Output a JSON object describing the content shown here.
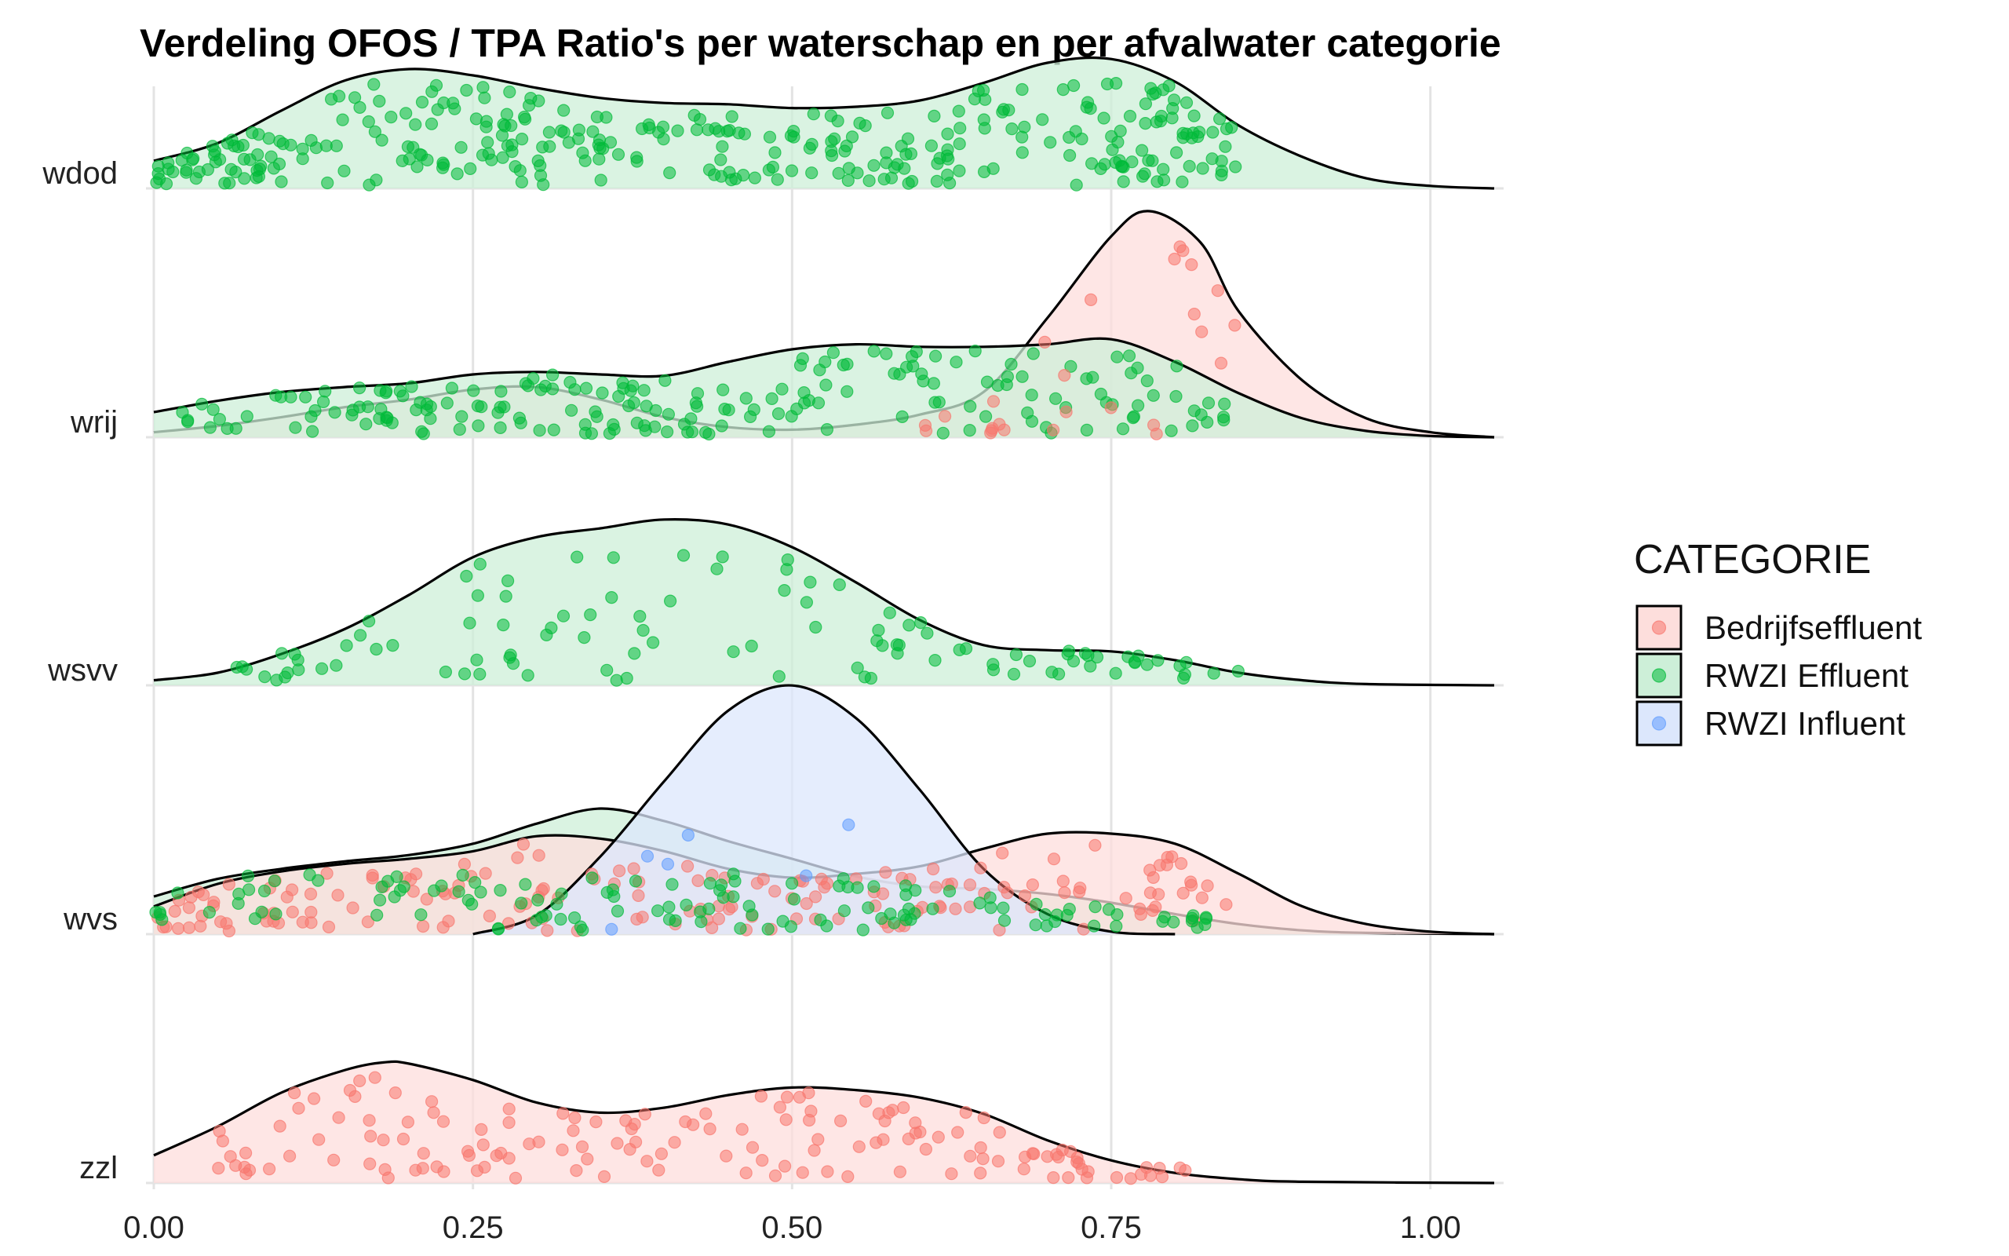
{
  "chart_data": {
    "type": "ridgeline",
    "title": "Verdeling OFOS / TPA Ratio's per waterschap en per afvalwater categorie",
    "xlabel": "",
    "ylabel": "",
    "xlim": [
      0,
      1.05
    ],
    "x_ticks": [
      "0.00",
      "0.25",
      "0.50",
      "0.75",
      "1.00"
    ],
    "x_tick_values": [
      0,
      0.25,
      0.5,
      0.75,
      1.0
    ],
    "groups": [
      "wdod",
      "wrij",
      "wsvv",
      "wvs",
      "zzl"
    ],
    "grid": true,
    "legend": {
      "title": "CATEGORIE",
      "position": "right",
      "entries": [
        {
          "name": "Bedrijfseffluent",
          "fill": "#FDDEDC",
          "point": "#F8766D"
        },
        {
          "name": "RWZI Effluent",
          "fill": "#CDEFD8",
          "point": "#00BA38"
        },
        {
          "name": "RWZI Influent",
          "fill": "#DCE7FC",
          "point": "#619CFF"
        }
      ]
    },
    "ridges": [
      {
        "group": "wdod",
        "category": "RWZI Effluent",
        "points": [
          [
            0,
            0.22
          ],
          [
            0.05,
            0.36
          ],
          [
            0.1,
            0.62
          ],
          [
            0.15,
            0.86
          ],
          [
            0.2,
            0.95
          ],
          [
            0.25,
            0.9
          ],
          [
            0.3,
            0.8
          ],
          [
            0.35,
            0.72
          ],
          [
            0.4,
            0.68
          ],
          [
            0.45,
            0.67
          ],
          [
            0.5,
            0.64
          ],
          [
            0.55,
            0.65
          ],
          [
            0.6,
            0.7
          ],
          [
            0.65,
            0.84
          ],
          [
            0.7,
            1.0
          ],
          [
            0.75,
            1.03
          ],
          [
            0.8,
            0.85
          ],
          [
            0.85,
            0.5
          ],
          [
            0.9,
            0.25
          ],
          [
            0.95,
            0.08
          ],
          [
            1.0,
            0.02
          ],
          [
            1.05,
            0
          ]
        ]
      },
      {
        "group": "wrij",
        "category": "Bedrijfseffluent",
        "points": [
          [
            0,
            0.04
          ],
          [
            0.05,
            0.09
          ],
          [
            0.1,
            0.16
          ],
          [
            0.15,
            0.24
          ],
          [
            0.2,
            0.3
          ],
          [
            0.25,
            0.38
          ],
          [
            0.3,
            0.4
          ],
          [
            0.35,
            0.3
          ],
          [
            0.4,
            0.16
          ],
          [
            0.45,
            0.08
          ],
          [
            0.5,
            0.06
          ],
          [
            0.55,
            0.1
          ],
          [
            0.6,
            0.18
          ],
          [
            0.65,
            0.36
          ],
          [
            0.7,
            0.95
          ],
          [
            0.75,
            1.6
          ],
          [
            0.78,
            1.8
          ],
          [
            0.82,
            1.55
          ],
          [
            0.85,
            1.0
          ],
          [
            0.9,
            0.45
          ],
          [
            0.95,
            0.15
          ],
          [
            1.0,
            0.04
          ],
          [
            1.05,
            0
          ]
        ]
      },
      {
        "group": "wrij",
        "category": "RWZI Effluent",
        "points": [
          [
            0,
            0.2
          ],
          [
            0.05,
            0.29
          ],
          [
            0.1,
            0.36
          ],
          [
            0.15,
            0.4
          ],
          [
            0.2,
            0.43
          ],
          [
            0.25,
            0.5
          ],
          [
            0.3,
            0.52
          ],
          [
            0.35,
            0.5
          ],
          [
            0.4,
            0.49
          ],
          [
            0.45,
            0.6
          ],
          [
            0.5,
            0.7
          ],
          [
            0.55,
            0.74
          ],
          [
            0.6,
            0.72
          ],
          [
            0.65,
            0.72
          ],
          [
            0.7,
            0.74
          ],
          [
            0.75,
            0.78
          ],
          [
            0.8,
            0.6
          ],
          [
            0.85,
            0.35
          ],
          [
            0.9,
            0.15
          ],
          [
            0.95,
            0.05
          ],
          [
            1.0,
            0.01
          ],
          [
            1.05,
            0
          ]
        ]
      },
      {
        "group": "wsvv",
        "category": "RWZI Effluent",
        "points": [
          [
            0,
            0.04
          ],
          [
            0.05,
            0.1
          ],
          [
            0.1,
            0.25
          ],
          [
            0.15,
            0.45
          ],
          [
            0.2,
            0.72
          ],
          [
            0.25,
            1.02
          ],
          [
            0.3,
            1.18
          ],
          [
            0.35,
            1.25
          ],
          [
            0.4,
            1.32
          ],
          [
            0.45,
            1.28
          ],
          [
            0.5,
            1.1
          ],
          [
            0.55,
            0.82
          ],
          [
            0.6,
            0.52
          ],
          [
            0.65,
            0.32
          ],
          [
            0.7,
            0.28
          ],
          [
            0.75,
            0.27
          ],
          [
            0.8,
            0.2
          ],
          [
            0.85,
            0.1
          ],
          [
            0.9,
            0.04
          ],
          [
            0.95,
            0.01
          ],
          [
            1.05,
            0
          ]
        ]
      },
      {
        "group": "wvs",
        "category": "RWZI Effluent",
        "points": [
          [
            0,
            0.3
          ],
          [
            0.05,
            0.44
          ],
          [
            0.1,
            0.52
          ],
          [
            0.15,
            0.58
          ],
          [
            0.2,
            0.63
          ],
          [
            0.25,
            0.72
          ],
          [
            0.3,
            0.88
          ],
          [
            0.35,
            1.0
          ],
          [
            0.4,
            0.9
          ],
          [
            0.45,
            0.74
          ],
          [
            0.5,
            0.6
          ],
          [
            0.55,
            0.46
          ],
          [
            0.6,
            0.38
          ],
          [
            0.65,
            0.36
          ],
          [
            0.7,
            0.32
          ],
          [
            0.75,
            0.25
          ],
          [
            0.8,
            0.16
          ],
          [
            0.85,
            0.08
          ],
          [
            0.9,
            0.03
          ],
          [
            0.95,
            0.01
          ],
          [
            1.05,
            0
          ]
        ]
      },
      {
        "group": "wvs",
        "category": "Bedrijfseffluent",
        "points": [
          [
            0,
            0.22
          ],
          [
            0.05,
            0.4
          ],
          [
            0.1,
            0.5
          ],
          [
            0.15,
            0.56
          ],
          [
            0.2,
            0.6
          ],
          [
            0.25,
            0.66
          ],
          [
            0.3,
            0.78
          ],
          [
            0.35,
            0.76
          ],
          [
            0.4,
            0.66
          ],
          [
            0.45,
            0.52
          ],
          [
            0.5,
            0.45
          ],
          [
            0.55,
            0.48
          ],
          [
            0.6,
            0.54
          ],
          [
            0.65,
            0.68
          ],
          [
            0.7,
            0.8
          ],
          [
            0.75,
            0.8
          ],
          [
            0.8,
            0.72
          ],
          [
            0.85,
            0.48
          ],
          [
            0.9,
            0.22
          ],
          [
            0.95,
            0.08
          ],
          [
            1.0,
            0.02
          ],
          [
            1.05,
            0
          ]
        ]
      },
      {
        "group": "wvs",
        "category": "RWZI Influent",
        "points": [
          [
            0.25,
            0
          ],
          [
            0.3,
            0.15
          ],
          [
            0.35,
            0.62
          ],
          [
            0.4,
            1.22
          ],
          [
            0.45,
            1.78
          ],
          [
            0.5,
            1.98
          ],
          [
            0.55,
            1.72
          ],
          [
            0.6,
            1.15
          ],
          [
            0.65,
            0.52
          ],
          [
            0.7,
            0.16
          ],
          [
            0.75,
            0.02
          ],
          [
            0.8,
            0
          ]
        ]
      },
      {
        "group": "zzl",
        "category": "Bedrijfseffluent",
        "points": [
          [
            0,
            0.22
          ],
          [
            0.05,
            0.45
          ],
          [
            0.1,
            0.72
          ],
          [
            0.15,
            0.9
          ],
          [
            0.18,
            0.96
          ],
          [
            0.2,
            0.95
          ],
          [
            0.25,
            0.82
          ],
          [
            0.3,
            0.64
          ],
          [
            0.35,
            0.56
          ],
          [
            0.4,
            0.6
          ],
          [
            0.45,
            0.7
          ],
          [
            0.5,
            0.76
          ],
          [
            0.55,
            0.74
          ],
          [
            0.6,
            0.68
          ],
          [
            0.65,
            0.55
          ],
          [
            0.7,
            0.34
          ],
          [
            0.75,
            0.18
          ],
          [
            0.8,
            0.08
          ],
          [
            0.85,
            0.03
          ],
          [
            0.9,
            0.01
          ],
          [
            1.05,
            0
          ]
        ]
      }
    ],
    "jitter_points": [
      {
        "group": "wdod",
        "category": "RWZI Effluent",
        "n": 330,
        "range": [
          0.0,
          0.85
        ],
        "spread": 0.9
      },
      {
        "group": "wrij",
        "category": "RWZI Effluent",
        "n": 200,
        "range": [
          0.02,
          0.85
        ],
        "spread": 0.75
      },
      {
        "group": "wrij",
        "category": "Bedrijfseffluent",
        "n": 26,
        "range": [
          0.6,
          0.85
        ],
        "spread": 1.75
      },
      {
        "group": "wsvv",
        "category": "RWZI Effluent",
        "n": 105,
        "range": [
          0.05,
          0.85
        ],
        "spread": 1.3
      },
      {
        "group": "wvs",
        "category": "Bedrijfseffluent",
        "n": 170,
        "range": [
          0.0,
          0.84
        ],
        "spread": 0.78
      },
      {
        "group": "wvs",
        "category": "RWZI Effluent",
        "n": 130,
        "range": [
          0.0,
          0.84
        ],
        "spread": 0.5
      },
      {
        "group": "wvs",
        "category": "RWZI Influent",
        "n": 6,
        "range": [
          0.35,
          0.56
        ],
        "spread": 1.3
      },
      {
        "group": "zzl",
        "category": "Bedrijfseffluent",
        "n": 150,
        "range": [
          0.04,
          0.83
        ],
        "spread": 0.9
      }
    ]
  }
}
